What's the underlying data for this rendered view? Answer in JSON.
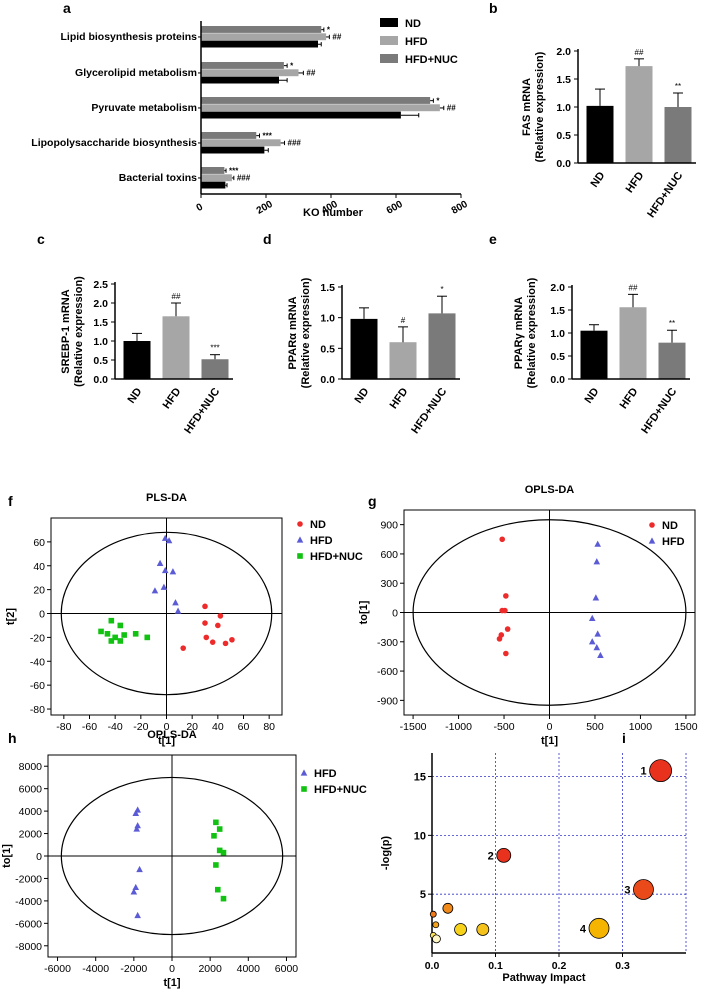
{
  "colors": {
    "nd": "#000000",
    "hfd": "#a6a6a6",
    "hfdnuc": "#7a7a7a",
    "red": "#ee2b2b",
    "blue": "#5b5bd6",
    "green": "#12c212",
    "grid": "#3333cc"
  },
  "panels": {
    "a": "a",
    "b": "b",
    "c": "c",
    "d": "d",
    "e": "e",
    "f": "f",
    "g": "g",
    "h": "h",
    "i": "i"
  },
  "chart_data": [
    {
      "id": "a",
      "type": "bar",
      "orientation": "horizontal",
      "categories": [
        "Lipid biosynthesis proteins",
        "Glycerolipid metabolism",
        "Pyruvate metabolism",
        "Lipopolysaccharide biosynthesis",
        "Bacterial toxins"
      ],
      "series": [
        {
          "name": "HFD+NUC",
          "values": [
            370,
            255,
            705,
            170,
            72
          ],
          "errors": [
            8,
            10,
            10,
            10,
            5
          ],
          "marks": [
            "*",
            "*",
            "*",
            "***",
            "***"
          ]
        },
        {
          "name": "HFD",
          "values": [
            385,
            300,
            735,
            245,
            95
          ],
          "errors": [
            10,
            15,
            12,
            12,
            6
          ],
          "marks": [
            "##",
            "##",
            "##",
            "###",
            "###"
          ]
        },
        {
          "name": "ND",
          "values": [
            360,
            240,
            615,
            195,
            75
          ],
          "errors": [
            10,
            25,
            55,
            12,
            5
          ],
          "marks": [
            "",
            "",
            "",
            "",
            ""
          ]
        }
      ],
      "legend": [
        "ND",
        "HFD",
        "HFD+NUC"
      ],
      "xlabel": "KO number",
      "xlim": [
        0,
        800
      ],
      "xticks": [
        0,
        200,
        400,
        600,
        800
      ]
    },
    {
      "id": "b",
      "type": "bar",
      "categories": [
        "ND",
        "HFD",
        "HFD+NUC"
      ],
      "values": [
        1.02,
        1.73,
        1.0
      ],
      "errors": [
        0.3,
        0.13,
        0.25
      ],
      "marks": [
        "",
        "##",
        "**"
      ],
      "ylabel": "FAS mRNA",
      "ylabel2": "(Relative expression)",
      "ylim": [
        0,
        2.0
      ],
      "yticks": [
        "0.0",
        "0.5",
        "1.0",
        "1.5",
        "2.0"
      ]
    },
    {
      "id": "c",
      "type": "bar",
      "categories": [
        "ND",
        "HFD",
        "HFD+NUC"
      ],
      "values": [
        1.0,
        1.65,
        0.52
      ],
      "errors": [
        0.2,
        0.35,
        0.12
      ],
      "marks": [
        "",
        "##",
        "***"
      ],
      "ylabel": "SREBP-1 mRNA",
      "ylabel2": "(Relative expression)",
      "ylim": [
        0,
        2.5
      ],
      "yticks": [
        "0.0",
        "0.5",
        "1.0",
        "1.5",
        "2.0",
        "2.5"
      ]
    },
    {
      "id": "d",
      "type": "bar",
      "categories": [
        "ND",
        "HFD",
        "HFD+NUC"
      ],
      "values": [
        0.98,
        0.6,
        1.07
      ],
      "errors": [
        0.18,
        0.25,
        0.28
      ],
      "marks": [
        "",
        "#",
        "*"
      ],
      "ylabel": "PPARα mRNA",
      "ylabel2": "(Relative expression)",
      "ylim": [
        0,
        1.5
      ],
      "yticks": [
        "0.0",
        "0.5",
        "1.0",
        "1.5"
      ]
    },
    {
      "id": "e",
      "type": "bar",
      "categories": [
        "ND",
        "HFD",
        "HFD+NUC"
      ],
      "values": [
        1.05,
        1.56,
        0.79
      ],
      "errors": [
        0.13,
        0.28,
        0.27
      ],
      "marks": [
        "",
        "##",
        "**"
      ],
      "ylabel": "PPARγ mRNA",
      "ylabel2": "(Relative expression)",
      "ylim": [
        0,
        2.0
      ],
      "yticks": [
        "0.0",
        "0.5",
        "1.0",
        "1.5",
        "2.0"
      ]
    },
    {
      "id": "f",
      "type": "scatter",
      "title": "PLS-DA",
      "xlabel": "t[1]",
      "ylabel": "t[2]",
      "xlim": [
        -90,
        90
      ],
      "ylim": [
        -85,
        80
      ],
      "xticks": [
        -80,
        -60,
        -40,
        -20,
        0,
        20,
        40,
        60,
        80
      ],
      "yticks": [
        -80,
        -60,
        -40,
        -20,
        0,
        20,
        40,
        60
      ],
      "ellipse": {
        "rx": 82,
        "ry": 68
      },
      "series": [
        {
          "name": "ND",
          "marker": "circle",
          "color": "red",
          "points": [
            [
              30,
              6
            ],
            [
              42,
              -2
            ],
            [
              30,
              -8
            ],
            [
              40,
              -10
            ],
            [
              13,
              -29
            ],
            [
              31,
              -20
            ],
            [
              46,
              -25
            ],
            [
              36,
              -24
            ],
            [
              51,
              -22
            ]
          ]
        },
        {
          "name": "HFD",
          "marker": "triangle",
          "color": "blue",
          "points": [
            [
              -1,
              63
            ],
            [
              2,
              61
            ],
            [
              -5,
              42
            ],
            [
              -1,
              36
            ],
            [
              5,
              35
            ],
            [
              -2,
              22
            ],
            [
              -9,
              19
            ],
            [
              7,
              9
            ],
            [
              9,
              2
            ]
          ]
        },
        {
          "name": "HFD+NUC",
          "marker": "square",
          "color": "green",
          "points": [
            [
              -43,
              -6
            ],
            [
              -36,
              -10
            ],
            [
              -51,
              -15
            ],
            [
              -46,
              -17
            ],
            [
              -33,
              -18
            ],
            [
              -40,
              -20
            ],
            [
              -24,
              -17
            ],
            [
              -43,
              -23
            ],
            [
              -36,
              -23
            ],
            [
              -15,
              -20
            ]
          ]
        }
      ]
    },
    {
      "id": "g",
      "type": "scatter",
      "title": "OPLS-DA",
      "xlabel": "t[1]",
      "ylabel": "to[1]",
      "xlim": [
        -1600,
        1600
      ],
      "ylim": [
        -1050,
        1050
      ],
      "xticks": [
        -1500,
        -1000,
        -500,
        0,
        500,
        1000,
        1500
      ],
      "yticks": [
        -900,
        -600,
        -300,
        0,
        300,
        600,
        900
      ],
      "ellipse": {
        "rx": 1500,
        "ry": 950
      },
      "series": [
        {
          "name": "ND",
          "marker": "circle",
          "color": "red",
          "points": [
            [
              -520,
              750
            ],
            [
              -480,
              170
            ],
            [
              -520,
              20
            ],
            [
              -490,
              20
            ],
            [
              -460,
              -170
            ],
            [
              -550,
              -270
            ],
            [
              -480,
              -420
            ],
            [
              -530,
              -230
            ]
          ]
        },
        {
          "name": "HFD",
          "marker": "triangle",
          "color": "blue",
          "points": [
            [
              530,
              700
            ],
            [
              520,
              520
            ],
            [
              510,
              150
            ],
            [
              470,
              -60
            ],
            [
              530,
              -220
            ],
            [
              470,
              -300
            ],
            [
              520,
              -360
            ],
            [
              560,
              -440
            ]
          ]
        }
      ]
    },
    {
      "id": "h",
      "type": "scatter",
      "title": "OPLS-DA",
      "xlabel": "t[1]",
      "ylabel": "to[1]",
      "xlim": [
        -6500,
        6500
      ],
      "ylim": [
        -9000,
        9000
      ],
      "xticks": [
        -6000,
        -4000,
        -2000,
        0,
        2000,
        4000,
        6000
      ],
      "yticks": [
        -8000,
        -6000,
        -4000,
        -2000,
        0,
        2000,
        4000,
        6000,
        8000
      ],
      "ellipse": {
        "rx": 5800,
        "ry": 7000
      },
      "series": [
        {
          "name": "HFD",
          "marker": "triangle",
          "color": "blue",
          "points": [
            [
              -1800,
              4100
            ],
            [
              -1900,
              3800
            ],
            [
              -1800,
              2700
            ],
            [
              -1850,
              2400
            ],
            [
              -1700,
              -1200
            ],
            [
              -2000,
              -3200
            ],
            [
              -1900,
              -2800
            ],
            [
              -1800,
              -5300
            ]
          ]
        },
        {
          "name": "HFD+NUC",
          "marker": "square",
          "color": "green",
          "points": [
            [
              2300,
              3000
            ],
            [
              2500,
              2400
            ],
            [
              2200,
              1800
            ],
            [
              2500,
              500
            ],
            [
              2700,
              300
            ],
            [
              2300,
              -800
            ],
            [
              2400,
              -3000
            ],
            [
              2700,
              -3800
            ]
          ]
        }
      ]
    },
    {
      "id": "i",
      "type": "scatter",
      "subtype": "bubble",
      "xlabel": "Pathway Impact",
      "ylabel": "-log(p)",
      "xlim": [
        0,
        0.4
      ],
      "ylim": [
        0,
        17
      ],
      "xticks": [
        "0.0",
        "0.1",
        "0.2",
        "0.3"
      ],
      "yticks": [
        "5",
        "10",
        "15"
      ],
      "grid_x": [
        0,
        0.1,
        0.2,
        0.3,
        0.4
      ],
      "grid_y": [
        5,
        10,
        15
      ],
      "points": [
        {
          "x": 0.36,
          "y": 15.5,
          "size": 11,
          "color": "#e8321e",
          "label": "1"
        },
        {
          "x": 0.113,
          "y": 8.3,
          "size": 7,
          "color": "#e8321e",
          "label": "2"
        },
        {
          "x": 0.333,
          "y": 5.4,
          "size": 10,
          "color": "#ea4a1a",
          "label": "3"
        },
        {
          "x": 0.263,
          "y": 2.1,
          "size": 10,
          "color": "#f4b400",
          "label": "4"
        },
        {
          "x": 0.002,
          "y": 3.3,
          "size": 3,
          "color": "#f07a1a",
          "label": ""
        },
        {
          "x": 0.025,
          "y": 3.8,
          "size": 5,
          "color": "#f08a1a",
          "label": ""
        },
        {
          "x": 0.006,
          "y": 2.4,
          "size": 3,
          "color": "#f4a21a",
          "label": ""
        },
        {
          "x": 0.045,
          "y": 2.0,
          "size": 6,
          "color": "#f7d21a",
          "label": ""
        },
        {
          "x": 0.08,
          "y": 2.0,
          "size": 6,
          "color": "#f4c21a",
          "label": ""
        },
        {
          "x": 0.002,
          "y": 1.5,
          "size": 3,
          "color": "#fae15a",
          "label": ""
        },
        {
          "x": 0.007,
          "y": 1.2,
          "size": 4,
          "color": "#fff7c8",
          "label": ""
        }
      ]
    }
  ]
}
